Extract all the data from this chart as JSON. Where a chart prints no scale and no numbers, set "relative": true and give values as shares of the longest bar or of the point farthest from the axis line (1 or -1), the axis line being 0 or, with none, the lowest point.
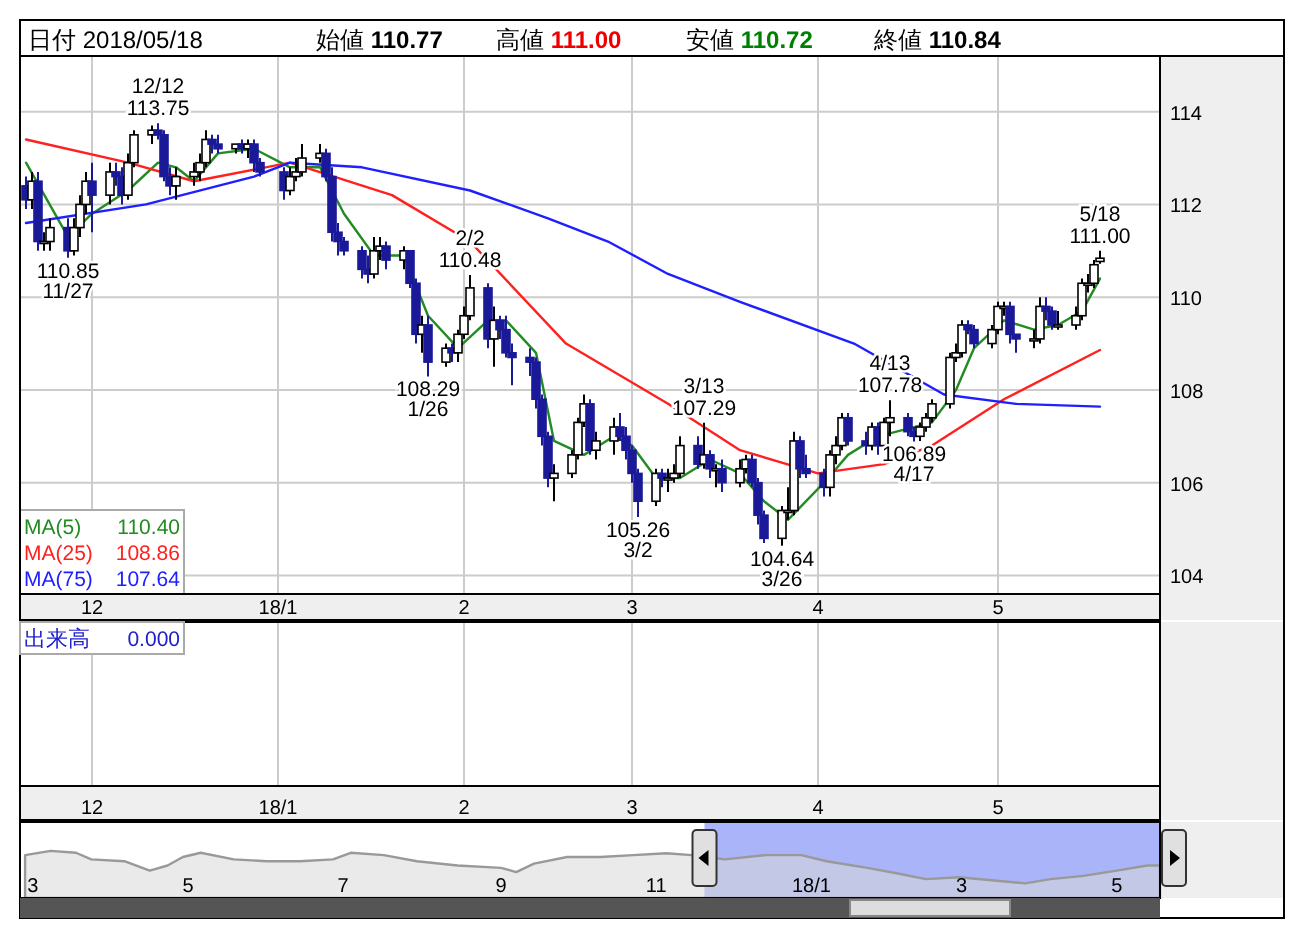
{
  "chart_data": [
    {
      "type": "candlestick",
      "annotations": [
        "日付 2018/05/18",
        "始値 110.77",
        "高値 111.00",
        "安値 110.72",
        "終値 110.84",
        "出来高",
        "0.000",
        {
          "text": "12/12 113.75",
          "x": "2017-12-12",
          "y": 113.75
        },
        {
          "text": "110.85 11/27",
          "x": "2017-11-27",
          "y": 110.85
        },
        {
          "text": "108.29 1/26",
          "x": "2018-01-26",
          "y": 108.29
        },
        {
          "text": "2/2 110.48",
          "x": "2018-02-02",
          "y": 110.48
        },
        {
          "text": "105.26 3/2",
          "x": "2018-03-02",
          "y": 105.26
        },
        {
          "text": "3/13 107.29",
          "x": "2018-03-13",
          "y": 107.29
        },
        {
          "text": "104.64 3/26",
          "x": "2018-03-26",
          "y": 104.64
        },
        {
          "text": "4/13 107.78",
          "x": "2018-04-13",
          "y": 107.78
        },
        {
          "text": "106.89 4/17",
          "x": "2018-04-17",
          "y": 106.89
        },
        {
          "text": "5/18 111.00",
          "x": "2018-05-18",
          "y": 111.0
        }
      ],
      "x": [
        "2017-11-20",
        "2017-11-21",
        "2017-11-22",
        "2017-11-23",
        "2017-11-24",
        "2017-11-27",
        "2017-11-28",
        "2017-11-29",
        "2017-11-30",
        "2017-12-01",
        "2017-12-04",
        "2017-12-05",
        "2017-12-06",
        "2017-12-07",
        "2017-12-08",
        "2017-12-11",
        "2017-12-12",
        "2017-12-13",
        "2017-12-14",
        "2017-12-15",
        "2017-12-18",
        "2017-12-19",
        "2017-12-20",
        "2017-12-21",
        "2017-12-22",
        "2017-12-25",
        "2017-12-26",
        "2017-12-27",
        "2017-12-28",
        "2017-12-29",
        "2018-01-02",
        "2018-01-03",
        "2018-01-04",
        "2018-01-05",
        "2018-01-08",
        "2018-01-09",
        "2018-01-10",
        "2018-01-11",
        "2018-01-12",
        "2018-01-15",
        "2018-01-16",
        "2018-01-17",
        "2018-01-18",
        "2018-01-19",
        "2018-01-22",
        "2018-01-23",
        "2018-01-24",
        "2018-01-25",
        "2018-01-26",
        "2018-01-29",
        "2018-01-30",
        "2018-01-31",
        "2018-02-01",
        "2018-02-02",
        "2018-02-05",
        "2018-02-06",
        "2018-02-07",
        "2018-02-08",
        "2018-02-09",
        "2018-02-12",
        "2018-02-13",
        "2018-02-14",
        "2018-02-15",
        "2018-02-16",
        "2018-02-19",
        "2018-02-20",
        "2018-02-21",
        "2018-02-22",
        "2018-02-23",
        "2018-02-26",
        "2018-02-27",
        "2018-02-28",
        "2018-03-01",
        "2018-03-02",
        "2018-03-05",
        "2018-03-06",
        "2018-03-07",
        "2018-03-08",
        "2018-03-09",
        "2018-03-12",
        "2018-03-13",
        "2018-03-14",
        "2018-03-15",
        "2018-03-16",
        "2018-03-19",
        "2018-03-20",
        "2018-03-21",
        "2018-03-22",
        "2018-03-23",
        "2018-03-26",
        "2018-03-27",
        "2018-03-28",
        "2018-03-29",
        "2018-03-30",
        "2018-04-02",
        "2018-04-03",
        "2018-04-04",
        "2018-04-05",
        "2018-04-06",
        "2018-04-09",
        "2018-04-10",
        "2018-04-11",
        "2018-04-12",
        "2018-04-13",
        "2018-04-16",
        "2018-04-17",
        "2018-04-18",
        "2018-04-19",
        "2018-04-20",
        "2018-04-23",
        "2018-04-24",
        "2018-04-25",
        "2018-04-26",
        "2018-04-27",
        "2018-04-30",
        "2018-05-01",
        "2018-05-02",
        "2018-05-03",
        "2018-05-04",
        "2018-05-07",
        "2018-05-08",
        "2018-05-09",
        "2018-05-10",
        "2018-05-11",
        "2018-05-14",
        "2018-05-15",
        "2018-05-16",
        "2018-05-17",
        "2018-05-18"
      ],
      "ohlc": [
        [
          112.4,
          112.6,
          111.9,
          112.1
        ],
        [
          112.1,
          112.7,
          111.9,
          112.5
        ],
        [
          112.5,
          112.7,
          111.0,
          111.2
        ],
        [
          111.2,
          111.4,
          111.0,
          111.2
        ],
        [
          111.2,
          111.7,
          111.0,
          111.5
        ],
        [
          111.5,
          111.7,
          110.85,
          111.0
        ],
        [
          111.0,
          111.7,
          110.9,
          111.5
        ],
        [
          111.5,
          112.2,
          111.3,
          112.0
        ],
        [
          112.0,
          112.7,
          111.8,
          112.5
        ],
        [
          112.5,
          112.9,
          111.4,
          112.2
        ],
        [
          112.2,
          112.9,
          112.0,
          112.7
        ],
        [
          112.7,
          112.9,
          112.4,
          112.6
        ],
        [
          112.6,
          112.8,
          112.0,
          112.2
        ],
        [
          112.2,
          113.1,
          112.1,
          112.9
        ],
        [
          112.9,
          113.6,
          112.8,
          113.5
        ],
        [
          113.5,
          113.7,
          113.3,
          113.6
        ],
        [
          113.6,
          113.75,
          113.4,
          113.5
        ],
        [
          113.5,
          113.6,
          112.5,
          112.6
        ],
        [
          112.6,
          112.8,
          112.2,
          112.4
        ],
        [
          112.4,
          112.8,
          112.1,
          112.6
        ],
        [
          112.6,
          112.9,
          112.4,
          112.7
        ],
        [
          112.7,
          113.1,
          112.5,
          112.9
        ],
        [
          112.9,
          113.6,
          112.8,
          113.4
        ],
        [
          113.4,
          113.5,
          113.1,
          113.3
        ],
        [
          113.3,
          113.5,
          113.1,
          113.2
        ],
        [
          113.2,
          113.3,
          113.1,
          113.3
        ],
        [
          113.3,
          113.4,
          113.1,
          113.2
        ],
        [
          113.2,
          113.4,
          113.0,
          113.3
        ],
        [
          113.3,
          113.4,
          112.7,
          112.9
        ],
        [
          112.9,
          113.0,
          112.6,
          112.7
        ],
        [
          112.7,
          112.8,
          112.1,
          112.3
        ],
        [
          112.3,
          112.8,
          112.2,
          112.6
        ],
        [
          112.6,
          113.0,
          112.5,
          112.7
        ],
        [
          112.7,
          113.3,
          112.6,
          113.0
        ],
        [
          113.0,
          113.3,
          112.9,
          113.1
        ],
        [
          113.1,
          113.2,
          112.5,
          112.6
        ],
        [
          112.6,
          112.8,
          111.2,
          111.4
        ],
        [
          111.4,
          111.6,
          110.9,
          111.2
        ],
        [
          111.2,
          111.3,
          110.9,
          111.0
        ],
        [
          111.0,
          111.1,
          110.4,
          110.6
        ],
        [
          110.6,
          110.9,
          110.3,
          110.5
        ],
        [
          110.5,
          111.3,
          110.4,
          111.0
        ],
        [
          111.0,
          111.3,
          110.8,
          111.1
        ],
        [
          111.1,
          111.2,
          110.6,
          110.8
        ],
        [
          110.8,
          111.1,
          110.6,
          111.0
        ],
        [
          111.0,
          111.0,
          110.2,
          110.3
        ],
        [
          110.3,
          110.4,
          109.0,
          109.2
        ],
        [
          109.2,
          109.6,
          108.8,
          109.4
        ],
        [
          109.4,
          109.6,
          108.29,
          108.6
        ],
        [
          108.6,
          109.0,
          108.5,
          108.9
        ],
        [
          108.9,
          109.0,
          108.6,
          108.8
        ],
        [
          108.8,
          109.3,
          108.6,
          109.2
        ],
        [
          109.2,
          109.8,
          109.1,
          109.6
        ],
        [
          109.6,
          110.48,
          109.5,
          110.2
        ],
        [
          110.2,
          110.3,
          108.9,
          109.1
        ],
        [
          109.1,
          109.8,
          108.5,
          109.5
        ],
        [
          109.5,
          109.6,
          109.1,
          109.3
        ],
        [
          109.3,
          109.6,
          108.7,
          108.8
        ],
        [
          108.8,
          109.0,
          108.1,
          108.7
        ],
        [
          108.7,
          108.9,
          108.3,
          108.6
        ],
        [
          108.6,
          108.7,
          107.6,
          107.8
        ],
        [
          107.8,
          107.9,
          106.8,
          107.0
        ],
        [
          107.0,
          107.1,
          105.9,
          106.1
        ],
        [
          106.1,
          106.4,
          105.6,
          106.2
        ],
        [
          106.2,
          106.7,
          106.1,
          106.6
        ],
        [
          106.6,
          107.4,
          106.5,
          107.3
        ],
        [
          107.3,
          107.9,
          107.2,
          107.7
        ],
        [
          107.7,
          107.8,
          106.6,
          106.7
        ],
        [
          106.7,
          107.1,
          106.5,
          106.9
        ],
        [
          106.9,
          107.4,
          106.6,
          107.2
        ],
        [
          107.2,
          107.5,
          106.9,
          107.0
        ],
        [
          107.0,
          107.2,
          106.5,
          106.7
        ],
        [
          106.7,
          106.8,
          106.0,
          106.2
        ],
        [
          106.2,
          106.3,
          105.26,
          105.6
        ],
        [
          105.6,
          106.3,
          105.5,
          106.2
        ],
        [
          106.2,
          106.3,
          105.9,
          106.1
        ],
        [
          106.1,
          106.3,
          105.8,
          106.1
        ],
        [
          106.1,
          106.4,
          106.0,
          106.2
        ],
        [
          106.2,
          107.0,
          106.1,
          106.8
        ],
        [
          106.8,
          107.0,
          106.3,
          106.4
        ],
        [
          106.4,
          107.29,
          106.3,
          106.6
        ],
        [
          106.6,
          106.7,
          106.1,
          106.3
        ],
        [
          106.3,
          106.4,
          105.9,
          106.3
        ],
        [
          106.3,
          106.5,
          105.8,
          106.0
        ],
        [
          106.0,
          106.5,
          105.9,
          106.3
        ],
        [
          106.3,
          106.6,
          106.2,
          106.5
        ],
        [
          106.5,
          106.6,
          105.9,
          106.0
        ],
        [
          106.0,
          106.1,
          105.1,
          105.3
        ],
        [
          105.3,
          105.4,
          104.7,
          104.8
        ],
        [
          104.8,
          105.5,
          104.64,
          105.4
        ],
        [
          105.4,
          105.9,
          105.2,
          105.4
        ],
        [
          105.4,
          107.1,
          105.3,
          106.9
        ],
        [
          106.9,
          107.0,
          106.1,
          106.3
        ],
        [
          106.3,
          106.6,
          106.1,
          106.2
        ],
        [
          106.2,
          106.3,
          105.7,
          105.9
        ],
        [
          105.9,
          106.7,
          105.7,
          106.6
        ],
        [
          106.6,
          107.0,
          106.4,
          106.8
        ],
        [
          106.8,
          107.5,
          106.7,
          107.4
        ],
        [
          107.4,
          107.5,
          106.8,
          106.9
        ],
        [
          106.9,
          107.1,
          106.6,
          106.8
        ],
        [
          106.8,
          107.3,
          106.7,
          107.2
        ],
        [
          107.2,
          107.3,
          106.6,
          106.8
        ],
        [
          106.8,
          107.4,
          106.7,
          107.3
        ],
        [
          107.3,
          107.78,
          107.0,
          107.4
        ],
        [
          107.4,
          107.5,
          107.0,
          107.1
        ],
        [
          107.1,
          107.2,
          106.89,
          107.0
        ],
        [
          107.0,
          107.3,
          106.9,
          107.2
        ],
        [
          107.2,
          107.5,
          107.1,
          107.4
        ],
        [
          107.4,
          107.8,
          107.3,
          107.7
        ],
        [
          107.7,
          108.8,
          107.6,
          108.7
        ],
        [
          108.7,
          109.0,
          108.6,
          108.8
        ],
        [
          108.8,
          109.5,
          108.7,
          109.4
        ],
        [
          109.4,
          109.5,
          109.2,
          109.3
        ],
        [
          109.3,
          109.4,
          108.9,
          109.0
        ],
        [
          109.0,
          109.4,
          108.9,
          109.3
        ],
        [
          109.3,
          109.9,
          109.2,
          109.8
        ],
        [
          109.8,
          109.9,
          109.6,
          109.8
        ],
        [
          109.8,
          109.9,
          109.0,
          109.2
        ],
        [
          109.2,
          109.2,
          108.8,
          109.1
        ],
        [
          109.1,
          109.3,
          108.9,
          109.1
        ],
        [
          109.1,
          110.0,
          109.0,
          109.8
        ],
        [
          109.8,
          110.0,
          109.5,
          109.7
        ],
        [
          109.7,
          109.8,
          109.3,
          109.4
        ],
        [
          109.4,
          109.7,
          109.3,
          109.4
        ],
        [
          109.4,
          109.8,
          109.3,
          109.6
        ],
        [
          109.6,
          110.4,
          109.5,
          110.3
        ],
        [
          110.3,
          110.5,
          110.1,
          110.3
        ],
        [
          110.3,
          110.8,
          110.2,
          110.7
        ],
        [
          110.77,
          111.0,
          110.72,
          110.84
        ]
      ],
      "series": [
        {
          "name": "MA(5) 110.40",
          "type": "line",
          "color": "#228b22",
          "x": [
            "2017-11-20",
            "2017-11-27",
            "2017-12-01",
            "2017-12-07",
            "2017-12-12",
            "2017-12-15",
            "2017-12-18",
            "2017-12-22",
            "2017-12-28",
            "2018-01-03",
            "2018-01-08",
            "2018-01-12",
            "2018-01-17",
            "2018-01-22",
            "2018-01-26",
            "2018-01-31",
            "2018-02-05",
            "2018-02-08",
            "2018-02-13",
            "2018-02-16",
            "2018-02-21",
            "2018-02-26",
            "2018-03-01",
            "2018-03-05",
            "2018-03-09",
            "2018-03-14",
            "2018-03-19",
            "2018-03-23",
            "2018-03-27",
            "2018-04-02",
            "2018-04-06",
            "2018-04-11",
            "2018-04-17",
            "2018-04-20",
            "2018-04-24",
            "2018-04-27",
            "2018-05-02",
            "2018-05-07",
            "2018-05-11",
            "2018-05-15",
            "2018-05-18"
          ],
          "values": [
            112.9,
            111.3,
            111.8,
            112.3,
            112.9,
            112.8,
            112.5,
            113.1,
            113.2,
            112.8,
            112.8,
            111.8,
            110.9,
            110.9,
            109.6,
            108.9,
            109.5,
            109.5,
            108.8,
            106.9,
            106.6,
            107.0,
            106.8,
            106.1,
            106.1,
            106.5,
            106.2,
            105.6,
            105.2,
            106.0,
            106.6,
            107.0,
            107.2,
            107.3,
            108.0,
            108.9,
            109.5,
            109.3,
            109.4,
            109.7,
            110.4
          ]
        },
        {
          "name": "MA(25) 108.86",
          "type": "line",
          "color": "#ff2020",
          "x": [
            "2017-11-20",
            "2017-12-07",
            "2017-12-18",
            "2018-01-03",
            "2018-01-20",
            "2018-02-02",
            "2018-02-18",
            "2018-03-07",
            "2018-03-19",
            "2018-04-01",
            "2018-04-12",
            "2018-04-20",
            "2018-05-02",
            "2018-05-18"
          ],
          "values": [
            113.4,
            112.9,
            112.5,
            112.9,
            112.2,
            111.2,
            109.0,
            107.7,
            106.7,
            106.2,
            106.4,
            106.8,
            107.8,
            108.86
          ]
        },
        {
          "name": "MA(75) 107.64",
          "type": "line",
          "color": "#2020ff",
          "x": [
            "2017-11-20",
            "2017-12-10",
            "2017-12-28",
            "2018-01-03",
            "2018-01-15",
            "2018-02-02",
            "2018-02-15",
            "2018-02-25",
            "2018-03-07",
            "2018-03-19",
            "2018-04-07",
            "2018-04-22",
            "2018-05-04",
            "2018-05-18"
          ],
          "values": [
            111.6,
            112.0,
            112.6,
            112.9,
            112.8,
            112.3,
            111.7,
            111.2,
            110.5,
            109.9,
            109.0,
            107.9,
            107.7,
            107.64
          ]
        }
      ],
      "xlim": [
        "2017-11-19",
        "2018-05-28"
      ],
      "xticks": [
        {
          "value": "2017-12-01",
          "label": "12"
        },
        {
          "value": "2018-01-01",
          "label": "18/1"
        },
        {
          "value": "2018-02-01",
          "label": "2"
        },
        {
          "value": "2018-03-01",
          "label": "3"
        },
        {
          "value": "2018-04-01",
          "label": "4"
        },
        {
          "value": "2018-05-01",
          "label": "5"
        }
      ],
      "ylim": [
        103.6,
        115.2
      ],
      "yticks": [
        104,
        106,
        108,
        110,
        112,
        114
      ],
      "grid": true,
      "legend": "bottom left"
    },
    {
      "type": "area",
      "relative": true,
      "color": "#999999",
      "x": [
        "2017-02-26",
        "2017-03-08",
        "2017-03-18",
        "2017-03-24",
        "2017-04-06",
        "2017-04-16",
        "2017-04-23",
        "2017-04-29",
        "2017-05-06",
        "2017-05-19",
        "2017-06-01",
        "2017-06-14",
        "2017-06-27",
        "2017-07-04",
        "2017-07-17",
        "2017-07-30",
        "2017-08-15",
        "2017-09-01",
        "2017-09-07",
        "2017-09-14",
        "2017-09-27",
        "2017-10-10",
        "2017-10-23",
        "2017-11-05",
        "2017-11-15",
        "2017-11-28",
        "2017-12-14",
        "2017-12-28",
        "2018-01-07",
        "2018-01-23",
        "2018-02-05",
        "2018-02-15",
        "2018-02-28",
        "2018-03-16",
        "2018-03-26",
        "2018-04-05",
        "2018-04-18",
        "2018-05-01",
        "2018-05-13",
        "2018-05-18"
      ],
      "values": [
        0.91,
        1.0,
        0.96,
        0.82,
        0.78,
        0.58,
        0.69,
        0.87,
        0.96,
        0.82,
        0.78,
        0.78,
        0.82,
        0.96,
        0.91,
        0.78,
        0.69,
        0.64,
        0.55,
        0.73,
        0.87,
        0.87,
        0.91,
        0.95,
        0.91,
        0.82,
        0.91,
        0.91,
        0.78,
        0.64,
        0.51,
        0.4,
        0.44,
        0.36,
        0.31,
        0.4,
        0.47,
        0.58,
        0.69,
        0.69
      ],
      "bands": [
        {
          "axis": "x",
          "from": "2017-11-20",
          "to": "2018-05-18",
          "color": "#aab4f8"
        }
      ],
      "xlim": [
        "2017-02-24",
        "2018-05-18"
      ],
      "xticks": [
        {
          "value": "2017-03-01",
          "label": "3"
        },
        {
          "value": "2017-05-01",
          "label": "5"
        },
        {
          "value": "2017-07-01",
          "label": "7"
        },
        {
          "value": "2017-09-01",
          "label": "9"
        },
        {
          "value": "2017-11-01",
          "label": "11"
        },
        {
          "value": "2018-01-01",
          "label": "18/1"
        },
        {
          "value": "2018-03-01",
          "label": "3"
        },
        {
          "value": "2018-05-01",
          "label": "5"
        }
      ]
    }
  ]
}
